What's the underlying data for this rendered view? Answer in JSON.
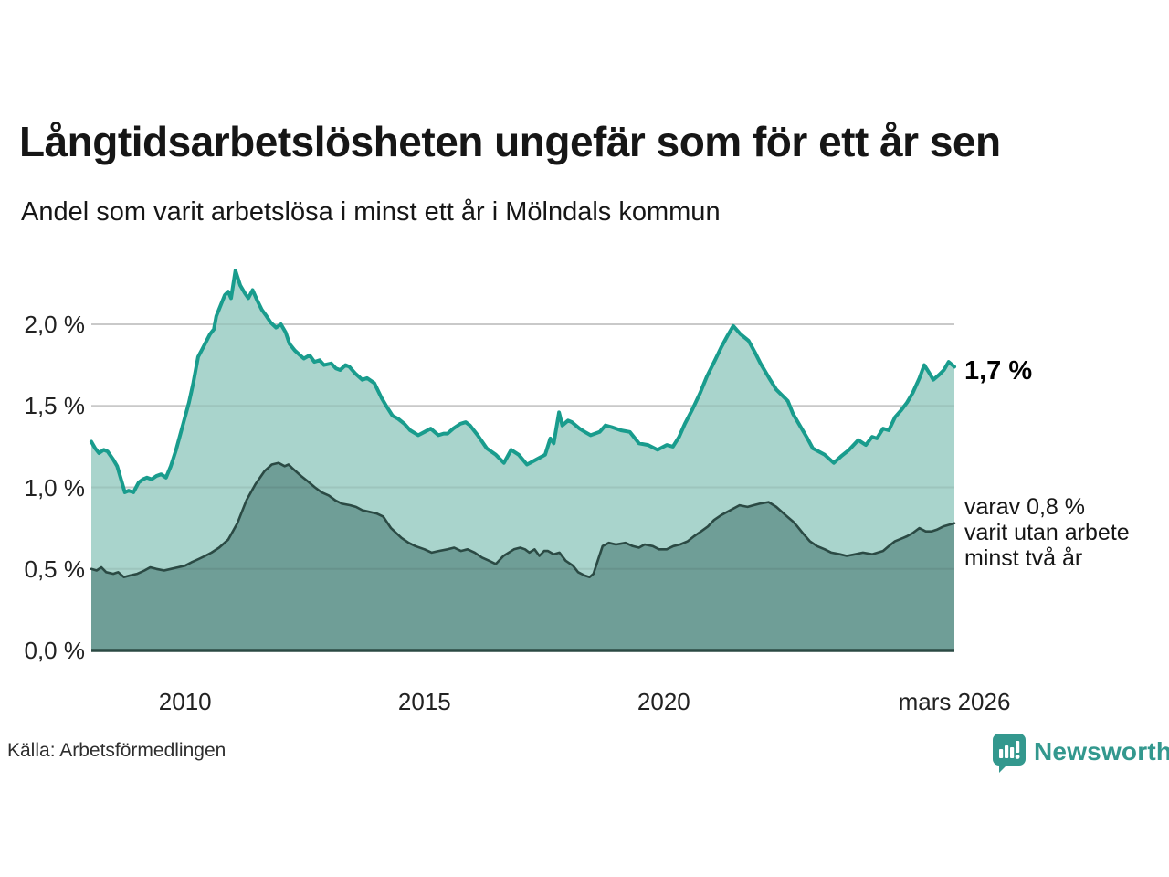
{
  "header": {
    "title": "Långtidsarbetslösheten ungefär som för ett år sen",
    "subtitle": "Andel som varit arbetslösa i minst ett år i Mölndals kommun"
  },
  "chart_data": {
    "type": "area",
    "title": "Långtidsarbetslösheten ungefär som för ett år sen",
    "subtitle": "Andel som varit arbetslösa i minst ett år i Mölndals kommun",
    "unit": "%",
    "grid": true,
    "grid_color": "#d9d9d9",
    "grid_overlay_color": "rgba(0,0,0,0.07)",
    "baseline_color": "#2b4a44",
    "xlim": [
      2008.04,
      2026.07
    ],
    "ylim": [
      0,
      2.4
    ],
    "legend_position": "end-of-line-labels",
    "y_ticks": [
      {
        "label": "2,0 %",
        "value": 2.0
      },
      {
        "label": "1,5 %",
        "value": 1.5
      },
      {
        "label": "1,0 %",
        "value": 1.0
      },
      {
        "label": "0,5 %",
        "value": 0.5
      },
      {
        "label": "0,0 %",
        "value": 0.0
      }
    ],
    "x_ticks": [
      {
        "label": "2010",
        "year": 2010
      },
      {
        "label": "2015",
        "year": 2015
      },
      {
        "label": "2020",
        "year": 2020
      },
      {
        "label": "mars 2026",
        "year": 2026.07
      }
    ],
    "series": [
      {
        "name": "Andel arbetslösa minst ett år",
        "color": "#199c8d",
        "fill": "#a9d4cc",
        "line_width": 4,
        "end_label": "1,7 %",
        "points": [
          [
            2008.04,
            1.28
          ],
          [
            2008.12,
            1.24
          ],
          [
            2008.2,
            1.21
          ],
          [
            2008.3,
            1.23
          ],
          [
            2008.38,
            1.22
          ],
          [
            2008.5,
            1.17
          ],
          [
            2008.58,
            1.13
          ],
          [
            2008.66,
            1.05
          ],
          [
            2008.74,
            0.97
          ],
          [
            2008.82,
            0.98
          ],
          [
            2008.92,
            0.97
          ],
          [
            2009.03,
            1.03
          ],
          [
            2009.12,
            1.05
          ],
          [
            2009.2,
            1.06
          ],
          [
            2009.3,
            1.05
          ],
          [
            2009.4,
            1.07
          ],
          [
            2009.5,
            1.08
          ],
          [
            2009.6,
            1.06
          ],
          [
            2009.7,
            1.13
          ],
          [
            2009.81,
            1.23
          ],
          [
            2009.94,
            1.37
          ],
          [
            2010.08,
            1.52
          ],
          [
            2010.17,
            1.64
          ],
          [
            2010.27,
            1.8
          ],
          [
            2010.38,
            1.86
          ],
          [
            2010.52,
            1.94
          ],
          [
            2010.6,
            1.97
          ],
          [
            2010.65,
            2.05
          ],
          [
            2010.76,
            2.13
          ],
          [
            2010.83,
            2.18
          ],
          [
            2010.9,
            2.2
          ],
          [
            2010.96,
            2.16
          ],
          [
            2011.05,
            2.33
          ],
          [
            2011.15,
            2.24
          ],
          [
            2011.25,
            2.19
          ],
          [
            2011.32,
            2.16
          ],
          [
            2011.41,
            2.21
          ],
          [
            2011.5,
            2.15
          ],
          [
            2011.6,
            2.09
          ],
          [
            2011.7,
            2.05
          ],
          [
            2011.79,
            2.01
          ],
          [
            2011.9,
            1.98
          ],
          [
            2012.0,
            2.0
          ],
          [
            2012.1,
            1.95
          ],
          [
            2012.18,
            1.88
          ],
          [
            2012.29,
            1.84
          ],
          [
            2012.4,
            1.81
          ],
          [
            2012.48,
            1.79
          ],
          [
            2012.6,
            1.81
          ],
          [
            2012.7,
            1.77
          ],
          [
            2012.81,
            1.78
          ],
          [
            2012.9,
            1.75
          ],
          [
            2013.05,
            1.76
          ],
          [
            2013.15,
            1.73
          ],
          [
            2013.24,
            1.72
          ],
          [
            2013.35,
            1.75
          ],
          [
            2013.43,
            1.74
          ],
          [
            2013.55,
            1.7
          ],
          [
            2013.7,
            1.66
          ],
          [
            2013.8,
            1.67
          ],
          [
            2013.95,
            1.64
          ],
          [
            2014.1,
            1.55
          ],
          [
            2014.2,
            1.5
          ],
          [
            2014.33,
            1.44
          ],
          [
            2014.45,
            1.42
          ],
          [
            2014.58,
            1.39
          ],
          [
            2014.7,
            1.35
          ],
          [
            2014.87,
            1.32
          ],
          [
            2015.0,
            1.34
          ],
          [
            2015.13,
            1.36
          ],
          [
            2015.29,
            1.32
          ],
          [
            2015.4,
            1.33
          ],
          [
            2015.48,
            1.33
          ],
          [
            2015.6,
            1.36
          ],
          [
            2015.75,
            1.39
          ],
          [
            2015.86,
            1.4
          ],
          [
            2015.95,
            1.38
          ],
          [
            2016.11,
            1.32
          ],
          [
            2016.3,
            1.24
          ],
          [
            2016.49,
            1.2
          ],
          [
            2016.66,
            1.15
          ],
          [
            2016.81,
            1.23
          ],
          [
            2016.97,
            1.2
          ],
          [
            2017.14,
            1.14
          ],
          [
            2017.33,
            1.17
          ],
          [
            2017.52,
            1.2
          ],
          [
            2017.63,
            1.3
          ],
          [
            2017.7,
            1.27
          ],
          [
            2017.81,
            1.46
          ],
          [
            2017.88,
            1.38
          ],
          [
            2018.0,
            1.41
          ],
          [
            2018.08,
            1.4
          ],
          [
            2018.24,
            1.36
          ],
          [
            2018.35,
            1.34
          ],
          [
            2018.47,
            1.32
          ],
          [
            2018.66,
            1.34
          ],
          [
            2018.78,
            1.38
          ],
          [
            2018.91,
            1.37
          ],
          [
            2019.1,
            1.35
          ],
          [
            2019.29,
            1.34
          ],
          [
            2019.48,
            1.27
          ],
          [
            2019.67,
            1.26
          ],
          [
            2019.87,
            1.23
          ],
          [
            2020.06,
            1.26
          ],
          [
            2020.19,
            1.25
          ],
          [
            2020.32,
            1.31
          ],
          [
            2020.44,
            1.39
          ],
          [
            2020.6,
            1.48
          ],
          [
            2020.76,
            1.58
          ],
          [
            2020.9,
            1.68
          ],
          [
            2021.07,
            1.78
          ],
          [
            2021.2,
            1.86
          ],
          [
            2021.33,
            1.93
          ],
          [
            2021.45,
            1.99
          ],
          [
            2021.6,
            1.94
          ],
          [
            2021.77,
            1.9
          ],
          [
            2021.9,
            1.83
          ],
          [
            2022.02,
            1.76
          ],
          [
            2022.2,
            1.67
          ],
          [
            2022.35,
            1.6
          ],
          [
            2022.59,
            1.53
          ],
          [
            2022.7,
            1.45
          ],
          [
            2022.86,
            1.37
          ],
          [
            2023.0,
            1.3
          ],
          [
            2023.11,
            1.24
          ],
          [
            2023.36,
            1.2
          ],
          [
            2023.55,
            1.15
          ],
          [
            2023.7,
            1.19
          ],
          [
            2023.87,
            1.23
          ],
          [
            2024.06,
            1.29
          ],
          [
            2024.22,
            1.26
          ],
          [
            2024.35,
            1.31
          ],
          [
            2024.45,
            1.3
          ],
          [
            2024.58,
            1.36
          ],
          [
            2024.7,
            1.35
          ],
          [
            2024.83,
            1.43
          ],
          [
            2024.95,
            1.47
          ],
          [
            2025.08,
            1.52
          ],
          [
            2025.2,
            1.58
          ],
          [
            2025.34,
            1.67
          ],
          [
            2025.44,
            1.75
          ],
          [
            2025.55,
            1.7
          ],
          [
            2025.63,
            1.66
          ],
          [
            2025.75,
            1.69
          ],
          [
            2025.85,
            1.72
          ],
          [
            2025.95,
            1.77
          ],
          [
            2026.07,
            1.74
          ]
        ]
      },
      {
        "name": "varav utan arbete minst två år",
        "color": "#2b4a44",
        "fill": "#6f9e97",
        "line_width": 2.6,
        "end_label_lines": [
          "varav 0,8 %",
          "varit utan arbete",
          "minst två år"
        ],
        "points": [
          [
            2008.04,
            0.5
          ],
          [
            2008.15,
            0.49
          ],
          [
            2008.25,
            0.51
          ],
          [
            2008.35,
            0.48
          ],
          [
            2008.5,
            0.47
          ],
          [
            2008.6,
            0.48
          ],
          [
            2008.72,
            0.45
          ],
          [
            2008.85,
            0.46
          ],
          [
            2009.0,
            0.47
          ],
          [
            2009.15,
            0.49
          ],
          [
            2009.27,
            0.51
          ],
          [
            2009.4,
            0.5
          ],
          [
            2009.56,
            0.49
          ],
          [
            2009.7,
            0.5
          ],
          [
            2009.85,
            0.51
          ],
          [
            2010.0,
            0.52
          ],
          [
            2010.13,
            0.54
          ],
          [
            2010.28,
            0.56
          ],
          [
            2010.42,
            0.58
          ],
          [
            2010.55,
            0.6
          ],
          [
            2010.71,
            0.63
          ],
          [
            2010.9,
            0.68
          ],
          [
            2011.09,
            0.78
          ],
          [
            2011.28,
            0.92
          ],
          [
            2011.47,
            1.02
          ],
          [
            2011.66,
            1.1
          ],
          [
            2011.81,
            1.14
          ],
          [
            2011.95,
            1.15
          ],
          [
            2012.08,
            1.13
          ],
          [
            2012.16,
            1.14
          ],
          [
            2012.23,
            1.12
          ],
          [
            2012.42,
            1.07
          ],
          [
            2012.55,
            1.04
          ],
          [
            2012.71,
            1.0
          ],
          [
            2012.85,
            0.97
          ],
          [
            2013.0,
            0.95
          ],
          [
            2013.14,
            0.92
          ],
          [
            2013.28,
            0.9
          ],
          [
            2013.45,
            0.89
          ],
          [
            2013.57,
            0.88
          ],
          [
            2013.7,
            0.86
          ],
          [
            2013.85,
            0.85
          ],
          [
            2014.0,
            0.84
          ],
          [
            2014.14,
            0.82
          ],
          [
            2014.3,
            0.75
          ],
          [
            2014.52,
            0.69
          ],
          [
            2014.67,
            0.66
          ],
          [
            2014.81,
            0.64
          ],
          [
            2015.0,
            0.62
          ],
          [
            2015.15,
            0.6
          ],
          [
            2015.3,
            0.61
          ],
          [
            2015.48,
            0.62
          ],
          [
            2015.62,
            0.63
          ],
          [
            2015.76,
            0.61
          ],
          [
            2015.9,
            0.62
          ],
          [
            2016.05,
            0.6
          ],
          [
            2016.2,
            0.57
          ],
          [
            2016.35,
            0.55
          ],
          [
            2016.49,
            0.53
          ],
          [
            2016.65,
            0.58
          ],
          [
            2016.87,
            0.62
          ],
          [
            2017.0,
            0.63
          ],
          [
            2017.1,
            0.62
          ],
          [
            2017.19,
            0.6
          ],
          [
            2017.3,
            0.62
          ],
          [
            2017.4,
            0.58
          ],
          [
            2017.5,
            0.61
          ],
          [
            2017.58,
            0.61
          ],
          [
            2017.7,
            0.59
          ],
          [
            2017.82,
            0.6
          ],
          [
            2017.95,
            0.55
          ],
          [
            2018.1,
            0.52
          ],
          [
            2018.21,
            0.48
          ],
          [
            2018.34,
            0.46
          ],
          [
            2018.45,
            0.45
          ],
          [
            2018.53,
            0.47
          ],
          [
            2018.62,
            0.55
          ],
          [
            2018.72,
            0.64
          ],
          [
            2018.85,
            0.66
          ],
          [
            2019.0,
            0.65
          ],
          [
            2019.2,
            0.66
          ],
          [
            2019.35,
            0.64
          ],
          [
            2019.48,
            0.63
          ],
          [
            2019.6,
            0.65
          ],
          [
            2019.77,
            0.64
          ],
          [
            2019.9,
            0.62
          ],
          [
            2020.06,
            0.62
          ],
          [
            2020.2,
            0.64
          ],
          [
            2020.34,
            0.65
          ],
          [
            2020.5,
            0.67
          ],
          [
            2020.63,
            0.7
          ],
          [
            2020.78,
            0.73
          ],
          [
            2020.92,
            0.76
          ],
          [
            2021.05,
            0.8
          ],
          [
            2021.2,
            0.83
          ],
          [
            2021.39,
            0.86
          ],
          [
            2021.58,
            0.89
          ],
          [
            2021.75,
            0.88
          ],
          [
            2021.87,
            0.89
          ],
          [
            2022.0,
            0.9
          ],
          [
            2022.19,
            0.91
          ],
          [
            2022.35,
            0.88
          ],
          [
            2022.54,
            0.83
          ],
          [
            2022.7,
            0.79
          ],
          [
            2022.79,
            0.76
          ],
          [
            2022.9,
            0.72
          ],
          [
            2023.05,
            0.67
          ],
          [
            2023.2,
            0.64
          ],
          [
            2023.36,
            0.62
          ],
          [
            2023.5,
            0.6
          ],
          [
            2023.68,
            0.59
          ],
          [
            2023.82,
            0.58
          ],
          [
            2024.0,
            0.59
          ],
          [
            2024.16,
            0.6
          ],
          [
            2024.35,
            0.59
          ],
          [
            2024.58,
            0.61
          ],
          [
            2024.7,
            0.64
          ],
          [
            2024.83,
            0.67
          ],
          [
            2025.0,
            0.69
          ],
          [
            2025.08,
            0.7
          ],
          [
            2025.2,
            0.72
          ],
          [
            2025.34,
            0.75
          ],
          [
            2025.47,
            0.73
          ],
          [
            2025.59,
            0.73
          ],
          [
            2025.7,
            0.74
          ],
          [
            2025.84,
            0.76
          ],
          [
            2026.07,
            0.78
          ]
        ]
      }
    ]
  },
  "footer": {
    "source": "Källa: Arbetsförmedlingen",
    "brand": "Newsworthy",
    "brand_color": "#33988e"
  }
}
